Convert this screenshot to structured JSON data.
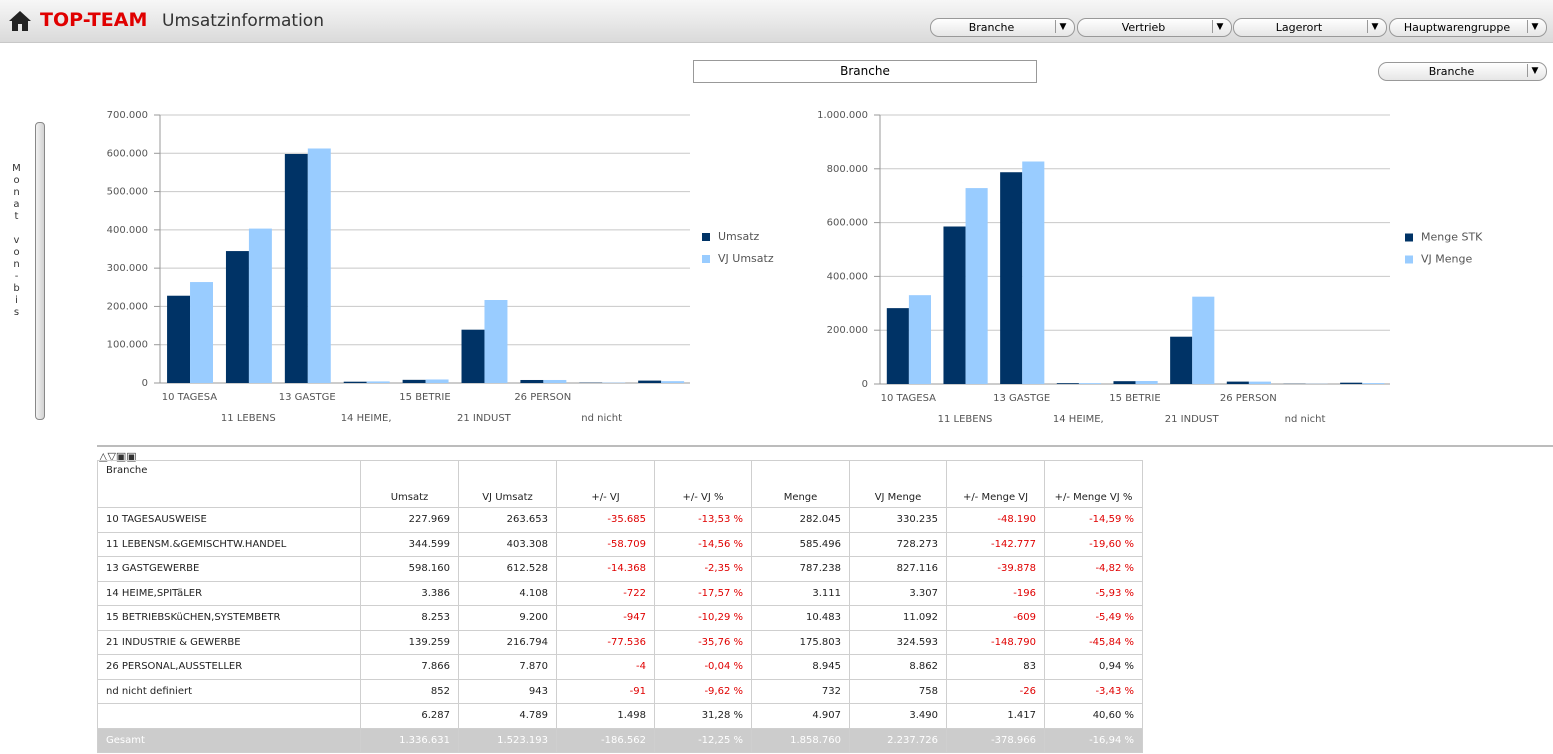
{
  "header": {
    "brand": "TOP-TEAM",
    "title": "Umsatzinformation",
    "filters": [
      "Branche",
      "Vertrieb",
      "Lagerort",
      "Hauptwarengruppe"
    ]
  },
  "dimension_box": "Branche",
  "dimension_select": "Branche",
  "slider_label": "Monat von-bis",
  "chart_data": [
    {
      "type": "bar",
      "categories": [
        "10  TAGESA",
        "11  LEBENS",
        "13  GASTGE",
        "14  HEIME,",
        "15  BETRIE",
        "21  INDUST",
        "26  PERSON",
        "nd  nicht",
        null
      ],
      "series": [
        {
          "name": "Umsatz",
          "color": "#003366",
          "values": [
            227969,
            344599,
            598160,
            3386,
            8253,
            139259,
            7866,
            852,
            6287
          ]
        },
        {
          "name": "VJ Umsatz",
          "color": "#99ccff",
          "values": [
            263653,
            403308,
            612528,
            4108,
            9200,
            216794,
            7870,
            943,
            4789
          ]
        }
      ],
      "ylim": [
        0,
        700000
      ],
      "yticks": [
        0,
        {
          "value": 100000,
          "label": "100.000"
        },
        {
          "value": 200000,
          "label": "200.000"
        },
        {
          "value": 300000,
          "label": "300.000"
        },
        {
          "value": 400000,
          "label": "400.000"
        },
        {
          "value": 500000,
          "label": "500.000"
        },
        {
          "value": 600000,
          "label": "600.000"
        },
        {
          "value": 700000,
          "label": "700.000"
        }
      ],
      "grid": true,
      "legend": "right"
    },
    {
      "type": "bar",
      "categories": [
        "10  TAGESA",
        "11  LEBENS",
        "13  GASTGE",
        "14  HEIME,",
        "15  BETRIE",
        "21  INDUST",
        "26  PERSON",
        "nd  nicht",
        null
      ],
      "series": [
        {
          "name": "Menge STK",
          "color": "#003366",
          "values": [
            282045,
            585496,
            787238,
            3111,
            10483,
            175803,
            8945,
            732,
            4907
          ]
        },
        {
          "name": "VJ Menge",
          "color": "#99ccff",
          "values": [
            330235,
            728273,
            827116,
            3307,
            11092,
            324593,
            8862,
            758,
            3490
          ]
        }
      ],
      "ylim": [
        0,
        1000000
      ],
      "yticks": [
        0,
        {
          "value": 200000,
          "label": "200.000"
        },
        {
          "value": 400000,
          "label": "400.000"
        },
        {
          "value": 600000,
          "label": "600.000"
        },
        {
          "value": 800000,
          "label": "800.000"
        },
        {
          "value": 1000000,
          "label": "1.000.000"
        }
      ],
      "grid": true,
      "legend": "right"
    }
  ],
  "table": {
    "header": [
      "Branche",
      "Umsatz",
      "VJ Umsatz",
      "+/- VJ",
      "+/- VJ %",
      "Menge",
      "VJ Menge",
      "+/- Menge VJ",
      "+/- Menge VJ %"
    ],
    "rows": [
      [
        "10  TAGESAUSWEISE",
        "227.969",
        "263.653",
        "-35.685",
        "-13,53 %",
        "282.045",
        "330.235",
        "-48.190",
        "-14,59 %"
      ],
      [
        "11  LEBENSM.&GEMISCHTW.HANDEL",
        "344.599",
        "403.308",
        "-58.709",
        "-14,56 %",
        "585.496",
        "728.273",
        "-142.777",
        "-19,60 %"
      ],
      [
        "13  GASTGEWERBE",
        "598.160",
        "612.528",
        "-14.368",
        "-2,35 %",
        "787.238",
        "827.116",
        "-39.878",
        "-4,82 %"
      ],
      [
        "14  HEIME,SPITäLER",
        "3.386",
        "4.108",
        "-722",
        "-17,57 %",
        "3.111",
        "3.307",
        "-196",
        "-5,93 %"
      ],
      [
        "15  BETRIEBSKüCHEN,SYSTEMBETR",
        "8.253",
        "9.200",
        "-947",
        "-10,29 %",
        "10.483",
        "11.092",
        "-609",
        "-5,49 %"
      ],
      [
        "21  INDUSTRIE & GEWERBE",
        "139.259",
        "216.794",
        "-77.536",
        "-35,76 %",
        "175.803",
        "324.593",
        "-148.790",
        "-45,84 %"
      ],
      [
        "26  PERSONAL,AUSSTELLER",
        "7.866",
        "7.870",
        "-4",
        "-0,04 %",
        "8.945",
        "8.862",
        "83",
        "0,94 %"
      ],
      [
        "nd  nicht definiert",
        "852",
        "943",
        "-91",
        "-9,62 %",
        "732",
        "758",
        "-26",
        "-3,43 %"
      ],
      [
        null,
        "6.287",
        "4.789",
        "1.498",
        "31,28 %",
        "4.907",
        "3.490",
        "1.417",
        "40,60 %"
      ],
      [
        "Gesamt",
        "1.336.631",
        "1.523.193",
        "-186.562",
        "-12,25 %",
        "1.858.760",
        "2.237.726",
        "-378.966",
        "-16,94 %"
      ]
    ]
  }
}
